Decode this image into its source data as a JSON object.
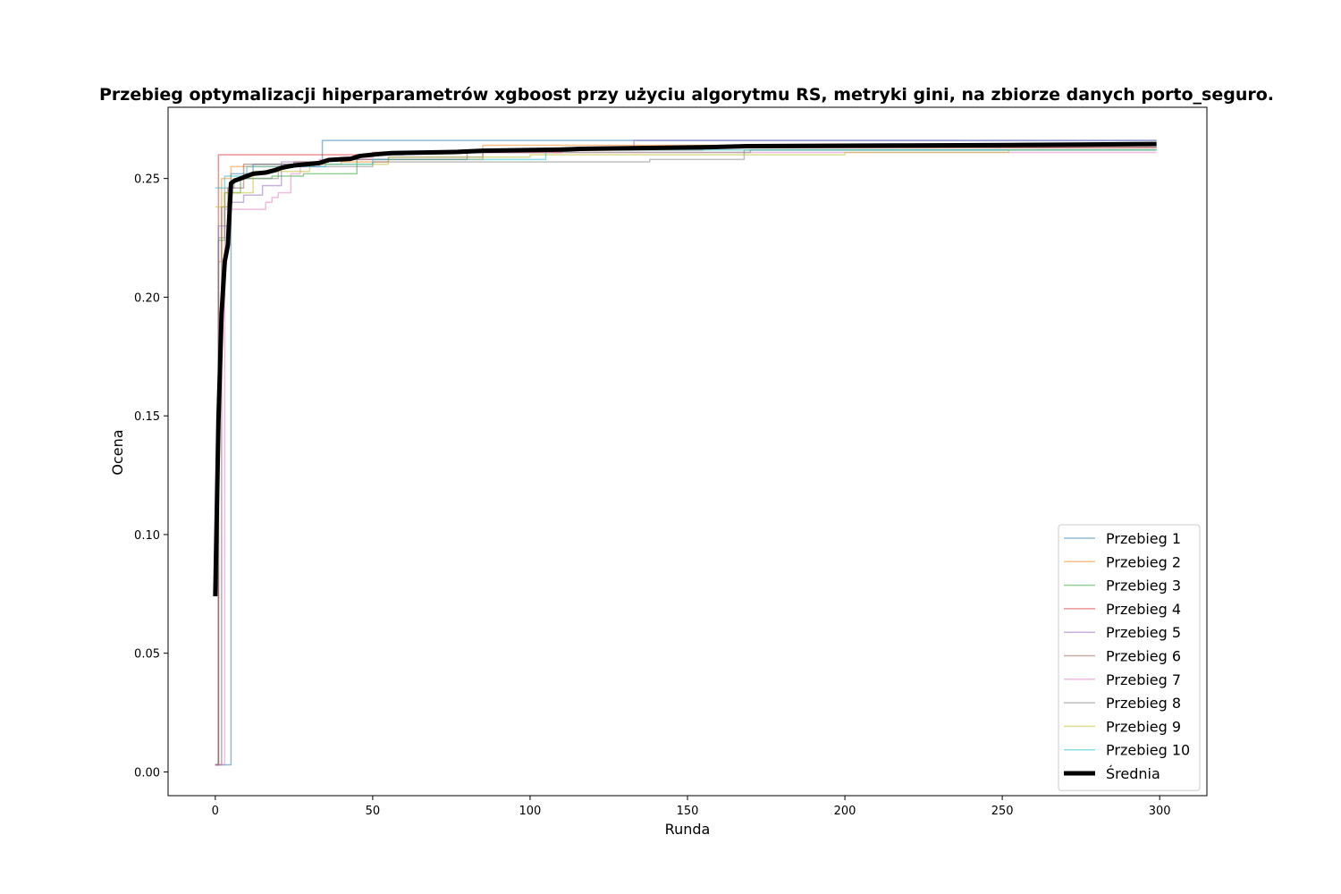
{
  "chart_data": {
    "type": "line",
    "title": "Przebieg optymalizacji hiperparametrów xgboost przy użyciu algorytmu RS, metryki gini, na zbiorze danych porto_seguro.",
    "xlabel": "Runda",
    "ylabel": "Ocena",
    "xlim": [
      -15,
      315
    ],
    "ylim": [
      -0.01,
      0.28
    ],
    "xticks": [
      0,
      50,
      100,
      150,
      200,
      250,
      300
    ],
    "xtick_labels": [
      "0",
      "50",
      "100",
      "150",
      "200",
      "250",
      "300"
    ],
    "yticks": [
      0.0,
      0.05,
      0.1,
      0.15,
      0.2,
      0.25
    ],
    "ytick_labels": [
      "0.00",
      "0.05",
      "0.10",
      "0.15",
      "0.20",
      "0.25"
    ],
    "grid": false,
    "legend_position": "lower right",
    "series": [
      {
        "name": "Przebieg 1",
        "color": "#1f77b4",
        "opacity": 0.5,
        "width": 1.5,
        "step": true,
        "points": [
          [
            0,
            0.003
          ],
          [
            4,
            0.003
          ],
          [
            5,
            0.252
          ],
          [
            12,
            0.256
          ],
          [
            34,
            0.266
          ],
          [
            299,
            0.266
          ]
        ]
      },
      {
        "name": "Przebieg 2",
        "color": "#ff7f0e",
        "opacity": 0.5,
        "width": 1.5,
        "step": true,
        "points": [
          [
            0,
            0.003
          ],
          [
            1,
            0.215
          ],
          [
            2,
            0.25
          ],
          [
            5,
            0.255
          ],
          [
            25,
            0.256
          ],
          [
            40,
            0.257
          ],
          [
            55,
            0.258
          ],
          [
            85,
            0.264
          ],
          [
            299,
            0.264
          ]
        ]
      },
      {
        "name": "Przebieg 3",
        "color": "#2ca02c",
        "opacity": 0.5,
        "width": 1.5,
        "step": true,
        "points": [
          [
            0,
            0.003
          ],
          [
            1,
            0.224
          ],
          [
            3,
            0.244
          ],
          [
            8,
            0.25
          ],
          [
            18,
            0.251
          ],
          [
            28,
            0.252
          ],
          [
            45,
            0.26
          ],
          [
            60,
            0.261
          ],
          [
            100,
            0.261
          ],
          [
            170,
            0.262
          ],
          [
            299,
            0.262
          ]
        ]
      },
      {
        "name": "Przebieg 4",
        "color": "#d62728",
        "opacity": 0.5,
        "width": 1.5,
        "step": true,
        "points": [
          [
            0,
            0.003
          ],
          [
            1,
            0.26
          ],
          [
            30,
            0.26
          ],
          [
            50,
            0.261
          ],
          [
            110,
            0.262
          ],
          [
            155,
            0.263
          ],
          [
            299,
            0.263
          ]
        ]
      },
      {
        "name": "Przebieg 5",
        "color": "#9467bd",
        "opacity": 0.5,
        "width": 1.5,
        "step": true,
        "points": [
          [
            0,
            0.003
          ],
          [
            1,
            0.23
          ],
          [
            4,
            0.24
          ],
          [
            9,
            0.243
          ],
          [
            15,
            0.247
          ],
          [
            21,
            0.257
          ],
          [
            35,
            0.258
          ],
          [
            55,
            0.259
          ],
          [
            85,
            0.262
          ],
          [
            133,
            0.266
          ],
          [
            299,
            0.266
          ]
        ]
      },
      {
        "name": "Przebieg 6",
        "color": "#8c564b",
        "opacity": 0.5,
        "width": 1.5,
        "step": true,
        "points": [
          [
            0,
            0.003
          ],
          [
            2,
            0.238
          ],
          [
            4,
            0.246
          ],
          [
            9,
            0.256
          ],
          [
            25,
            0.257
          ],
          [
            36,
            0.258
          ],
          [
            80,
            0.262
          ],
          [
            110,
            0.263
          ],
          [
            299,
            0.263
          ]
        ]
      },
      {
        "name": "Przebieg 7",
        "color": "#e377c2",
        "opacity": 0.5,
        "width": 1.5,
        "step": true,
        "points": [
          [
            0,
            0.003
          ],
          [
            2,
            0.003
          ],
          [
            3,
            0.237
          ],
          [
            16,
            0.24
          ],
          [
            18,
            0.242
          ],
          [
            20,
            0.244
          ],
          [
            24,
            0.252
          ],
          [
            27,
            0.255
          ],
          [
            33,
            0.258
          ],
          [
            40,
            0.259
          ],
          [
            50,
            0.261
          ],
          [
            299,
            0.261
          ]
        ]
      },
      {
        "name": "Przebieg 8",
        "color": "#7f7f7f",
        "opacity": 0.5,
        "width": 1.5,
        "step": true,
        "points": [
          [
            0,
            0.003
          ],
          [
            1,
            0.225
          ],
          [
            3,
            0.246
          ],
          [
            6,
            0.25
          ],
          [
            20,
            0.255
          ],
          [
            50,
            0.257
          ],
          [
            138,
            0.258
          ],
          [
            168,
            0.262
          ],
          [
            299,
            0.262
          ]
        ]
      },
      {
        "name": "Przebieg 9",
        "color": "#bcbd22",
        "opacity": 0.5,
        "width": 1.5,
        "step": true,
        "points": [
          [
            0,
            0.238
          ],
          [
            3,
            0.244
          ],
          [
            12,
            0.253
          ],
          [
            30,
            0.256
          ],
          [
            55,
            0.259
          ],
          [
            100,
            0.26
          ],
          [
            200,
            0.261
          ],
          [
            252,
            0.262
          ],
          [
            299,
            0.262
          ]
        ]
      },
      {
        "name": "Przebieg 10",
        "color": "#17becf",
        "opacity": 0.5,
        "width": 1.5,
        "step": true,
        "points": [
          [
            0,
            0.246
          ],
          [
            1,
            0.246
          ],
          [
            3,
            0.251
          ],
          [
            10,
            0.255
          ],
          [
            35,
            0.256
          ],
          [
            50,
            0.258
          ],
          [
            90,
            0.258
          ],
          [
            105,
            0.262
          ],
          [
            299,
            0.262
          ]
        ]
      },
      {
        "name": "Średnia",
        "color": "#000000",
        "opacity": 1,
        "width": 5,
        "step": false,
        "points": [
          [
            0,
            0.074
          ],
          [
            1,
            0.148
          ],
          [
            2,
            0.193
          ],
          [
            3,
            0.215
          ],
          [
            4,
            0.222
          ],
          [
            5,
            0.248
          ],
          [
            6,
            0.249
          ],
          [
            8,
            0.25
          ],
          [
            10,
            0.251
          ],
          [
            12,
            0.252
          ],
          [
            16,
            0.2525
          ],
          [
            19,
            0.2535
          ],
          [
            21,
            0.2545
          ],
          [
            25,
            0.2555
          ],
          [
            33,
            0.2565
          ],
          [
            36,
            0.2578
          ],
          [
            43,
            0.2583
          ],
          [
            46,
            0.2595
          ],
          [
            52,
            0.2603
          ],
          [
            56,
            0.2607
          ],
          [
            77,
            0.2612
          ],
          [
            85,
            0.2617
          ],
          [
            111,
            0.2622
          ],
          [
            116,
            0.2625
          ],
          [
            135,
            0.2628
          ],
          [
            157,
            0.2632
          ],
          [
            169,
            0.2636
          ],
          [
            217,
            0.2639
          ],
          [
            252,
            0.2641
          ],
          [
            274,
            0.2643
          ],
          [
            299,
            0.2645
          ]
        ]
      }
    ]
  }
}
